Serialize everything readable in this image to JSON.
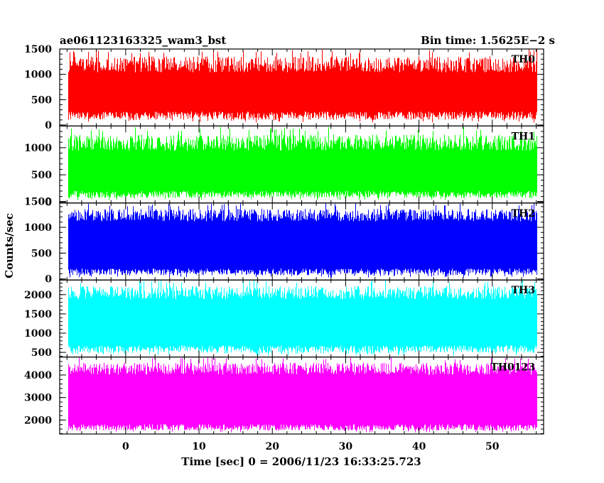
{
  "header": {
    "left_title": "ae061123163325_wam3_bst",
    "right_title": "Bin time: 1.5625E−2 s"
  },
  "chart_data": {
    "type": "line",
    "title": "ae061123163325_wam3_bst",
    "subtitle": "Bin time: 1.5625E−2 s",
    "xlabel": "Time [sec] 0 = 2006/11/23 16:33:25.723",
    "ylabel": "Counts/sec",
    "xlim": [
      -9,
      57
    ],
    "x_data_range": [
      -7.8,
      56
    ],
    "x_ticks": [
      "0",
      "10",
      "20",
      "30",
      "40",
      "50"
    ],
    "x_tick_values": [
      0,
      10,
      20,
      30,
      40,
      50
    ],
    "grid": false,
    "panels": [
      {
        "name": "TH0",
        "color": "#ff0000",
        "ylim": [
          -20,
          1500
        ],
        "y_ticks": [
          0,
          500,
          1000,
          1500
        ],
        "y_tick_labels": [
          "0",
          "500",
          "1000",
          "1500"
        ],
        "typical_range": [
          200,
          1150
        ],
        "extreme_range": [
          50,
          1500
        ]
      },
      {
        "name": "TH1",
        "color": "#00ff00",
        "ylim": [
          -20,
          1400
        ],
        "y_ticks": [
          0,
          500,
          1000
        ],
        "y_tick_labels": [
          "0",
          "500",
          "1000"
        ],
        "typical_range": [
          150,
          1050
        ],
        "extreme_range": [
          30,
          1380
        ]
      },
      {
        "name": "TH2",
        "color": "#0000ff",
        "ylim": [
          -20,
          1470
        ],
        "y_ticks": [
          0,
          500,
          1000,
          1500
        ],
        "y_tick_labels": [
          "0",
          "500",
          "1000",
          "1500"
        ],
        "typical_range": [
          150,
          1200
        ],
        "extreme_range": [
          30,
          1470
        ]
      },
      {
        "name": "TH3",
        "color": "#00ffff",
        "ylim": [
          380,
          2380
        ],
        "y_ticks": [
          500,
          1000,
          1500,
          2000
        ],
        "y_tick_labels": [
          "500",
          "1000",
          "1500",
          "2000"
        ],
        "typical_range": [
          600,
          2000
        ],
        "extreme_range": [
          420,
          2380
        ]
      },
      {
        "name": "TH0123",
        "color": "#ff00ff",
        "ylim": [
          1380,
          4800
        ],
        "y_ticks": [
          2000,
          3000,
          4000
        ],
        "y_tick_labels": [
          "2000",
          "3000",
          "4000"
        ],
        "typical_range": [
          1700,
          4200
        ],
        "extreme_range": [
          1450,
          4800
        ]
      }
    ]
  }
}
